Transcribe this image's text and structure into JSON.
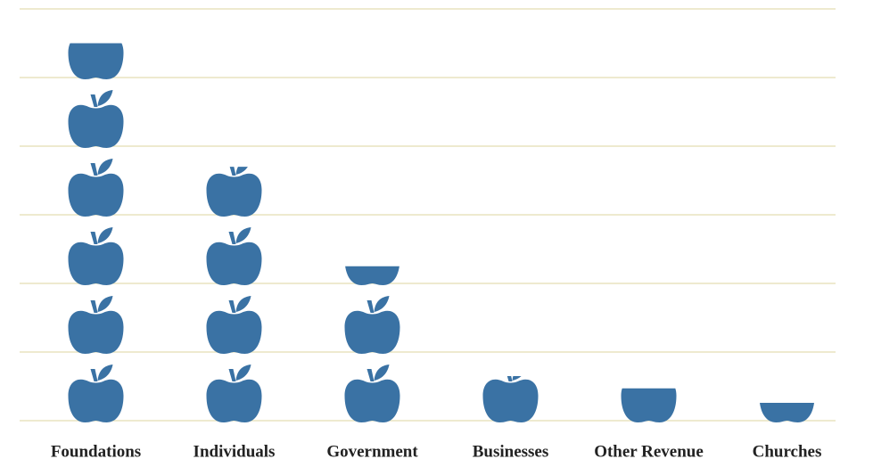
{
  "chart_data": {
    "type": "pictograph",
    "categories": [
      "Foundations",
      "Individuals",
      "Government",
      "Businesses",
      "Other Revenue",
      "Churches"
    ],
    "values": [
      5.5,
      3.7,
      2.25,
      0.65,
      0.47,
      0.26
    ],
    "color": "#3a72a4",
    "ylim": [
      0,
      6
    ],
    "yticks": [
      0,
      1,
      2,
      3,
      4,
      5,
      6
    ],
    "grid": true
  }
}
